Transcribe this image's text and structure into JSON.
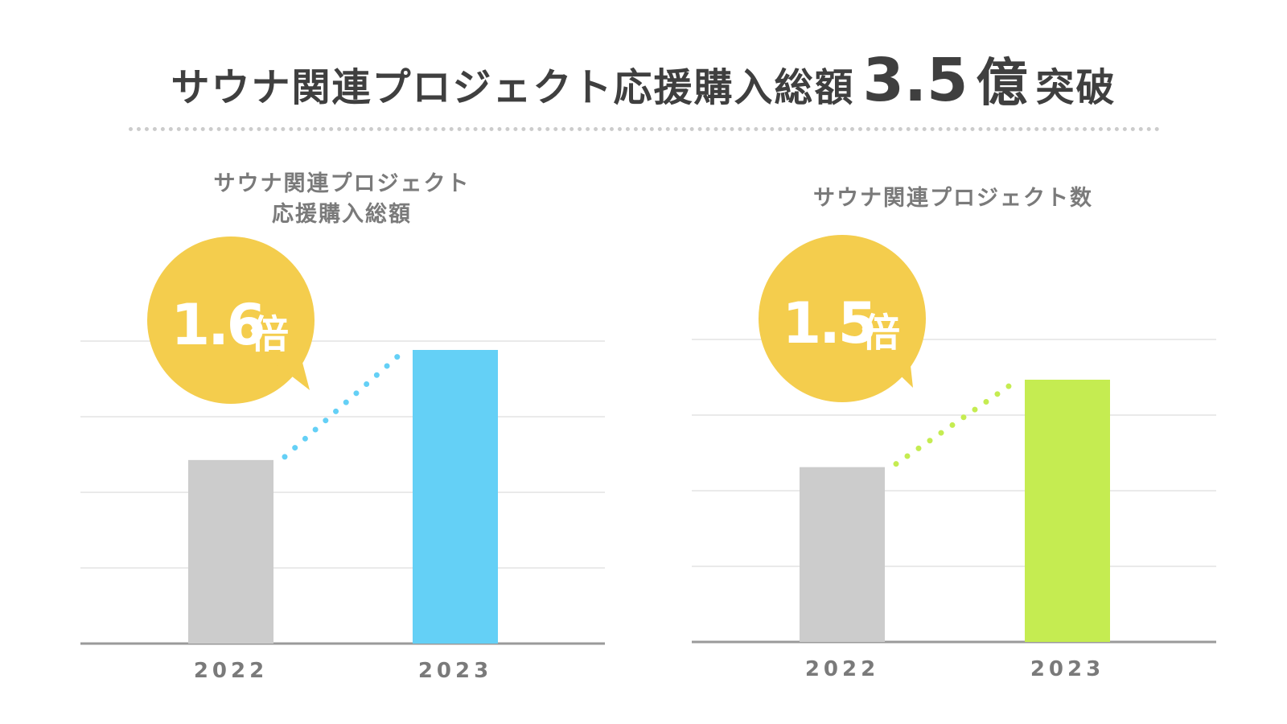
{
  "headline": {
    "prefix": "サウナ関連プロジェクト応援購入総額",
    "number": "3.5",
    "unit": "億",
    "suffix": "突破"
  },
  "panels": [
    {
      "title_line1": "サウナ関連プロジェクト",
      "title_line2": "応援購入総額",
      "badge_number": "1.6",
      "badge_unit": "倍"
    },
    {
      "title_line1": "サウナ関連プロジェクト数",
      "badge_number": "1.5",
      "badge_unit": "倍"
    }
  ],
  "colors": {
    "bar_2022": "#cccccc",
    "bar_2023_left": "#64d0f6",
    "bar_2023_right": "#c5ec51",
    "badge": "#f4cd4d",
    "axis": "#9a9a9a",
    "grid": "#e3e3e3",
    "text_gray": "#7a7a7a"
  },
  "chart_data": [
    {
      "type": "bar",
      "categories": [
        "2022",
        "2023"
      ],
      "values": [
        1,
        1.6
      ],
      "ylim": [
        0,
        2
      ],
      "grid": true,
      "annotation": "1.6倍"
    },
    {
      "type": "bar",
      "categories": [
        "2022",
        "2023"
      ],
      "values": [
        1,
        1.5
      ],
      "ylim": [
        0,
        2
      ],
      "grid": true,
      "annotation": "1.5倍"
    }
  ]
}
